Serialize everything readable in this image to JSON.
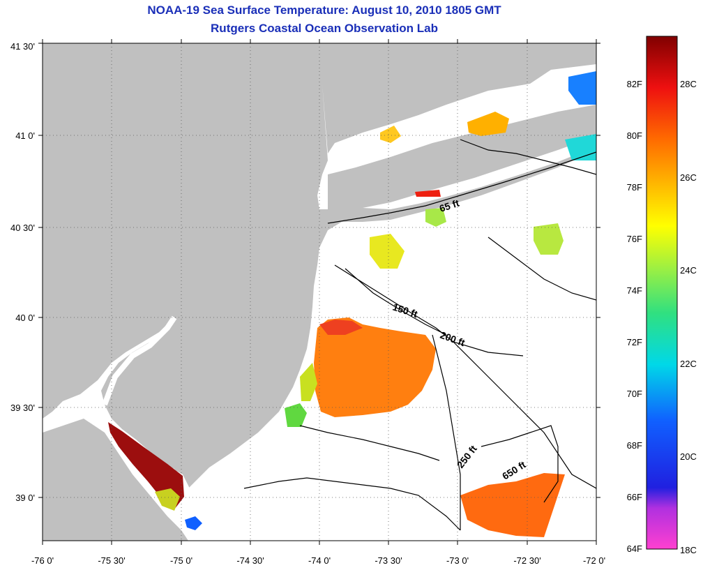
{
  "title": {
    "line1": "NOAA-19 Sea Surface Temperature:  August 10, 2010 1805 GMT",
    "line2": "Rutgers Coastal Ocean Observation Lab"
  },
  "axes": {
    "x_ticks": [
      "-76 0'",
      "-75 30'",
      "-75 0'",
      "-74 30'",
      "-74 0'",
      "-73 30'",
      "-73 0'",
      "-72 30'",
      "-72 0'"
    ],
    "y_ticks": [
      "41 30'",
      "41 0'",
      "40 30'",
      "40 0'",
      "39 30'",
      "39 0'"
    ],
    "lon_range": [
      -76.0,
      -72.0
    ],
    "lat_range": [
      38.75,
      41.5
    ]
  },
  "contours": [
    "65 ft",
    "150 ft",
    "200 ft",
    "250 ft",
    "650 ft"
  ],
  "colorbar": {
    "f_labels": [
      "82F",
      "80F",
      "78F",
      "76F",
      "74F",
      "72F",
      "70F",
      "68F",
      "66F",
      "64F"
    ],
    "c_labels": [
      "28C",
      "26C",
      "24C",
      "22C",
      "20C",
      "18C"
    ]
  },
  "colors": {
    "title": "#1a2fb8",
    "land": "#c0c0c0",
    "no_data": "#ffffff"
  }
}
